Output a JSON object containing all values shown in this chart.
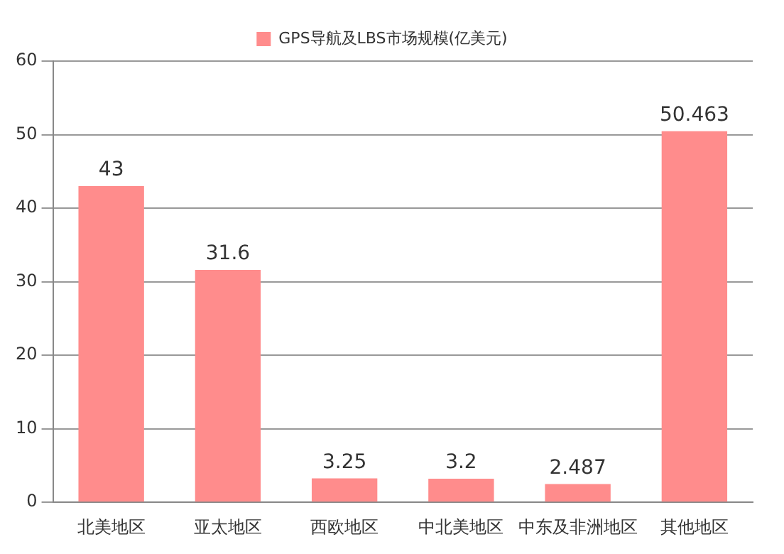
{
  "chart_data": {
    "type": "bar",
    "categories": [
      "北美地区",
      "亚太地区",
      "西欧地区",
      "中北美地区",
      "中东及非洲地区",
      "其他地区"
    ],
    "series": [
      {
        "name": "GPS导航及LBS市场规模(亿美元)",
        "color": "#ff8c8c",
        "values": [
          43,
          31.6,
          3.25,
          3.2,
          2.487,
          50.463
        ]
      }
    ],
    "ylim": [
      0,
      60
    ],
    "yticks": [
      0,
      10,
      20,
      30,
      40,
      50,
      60
    ],
    "grid": "y",
    "legend": "top",
    "data_labels": true
  }
}
